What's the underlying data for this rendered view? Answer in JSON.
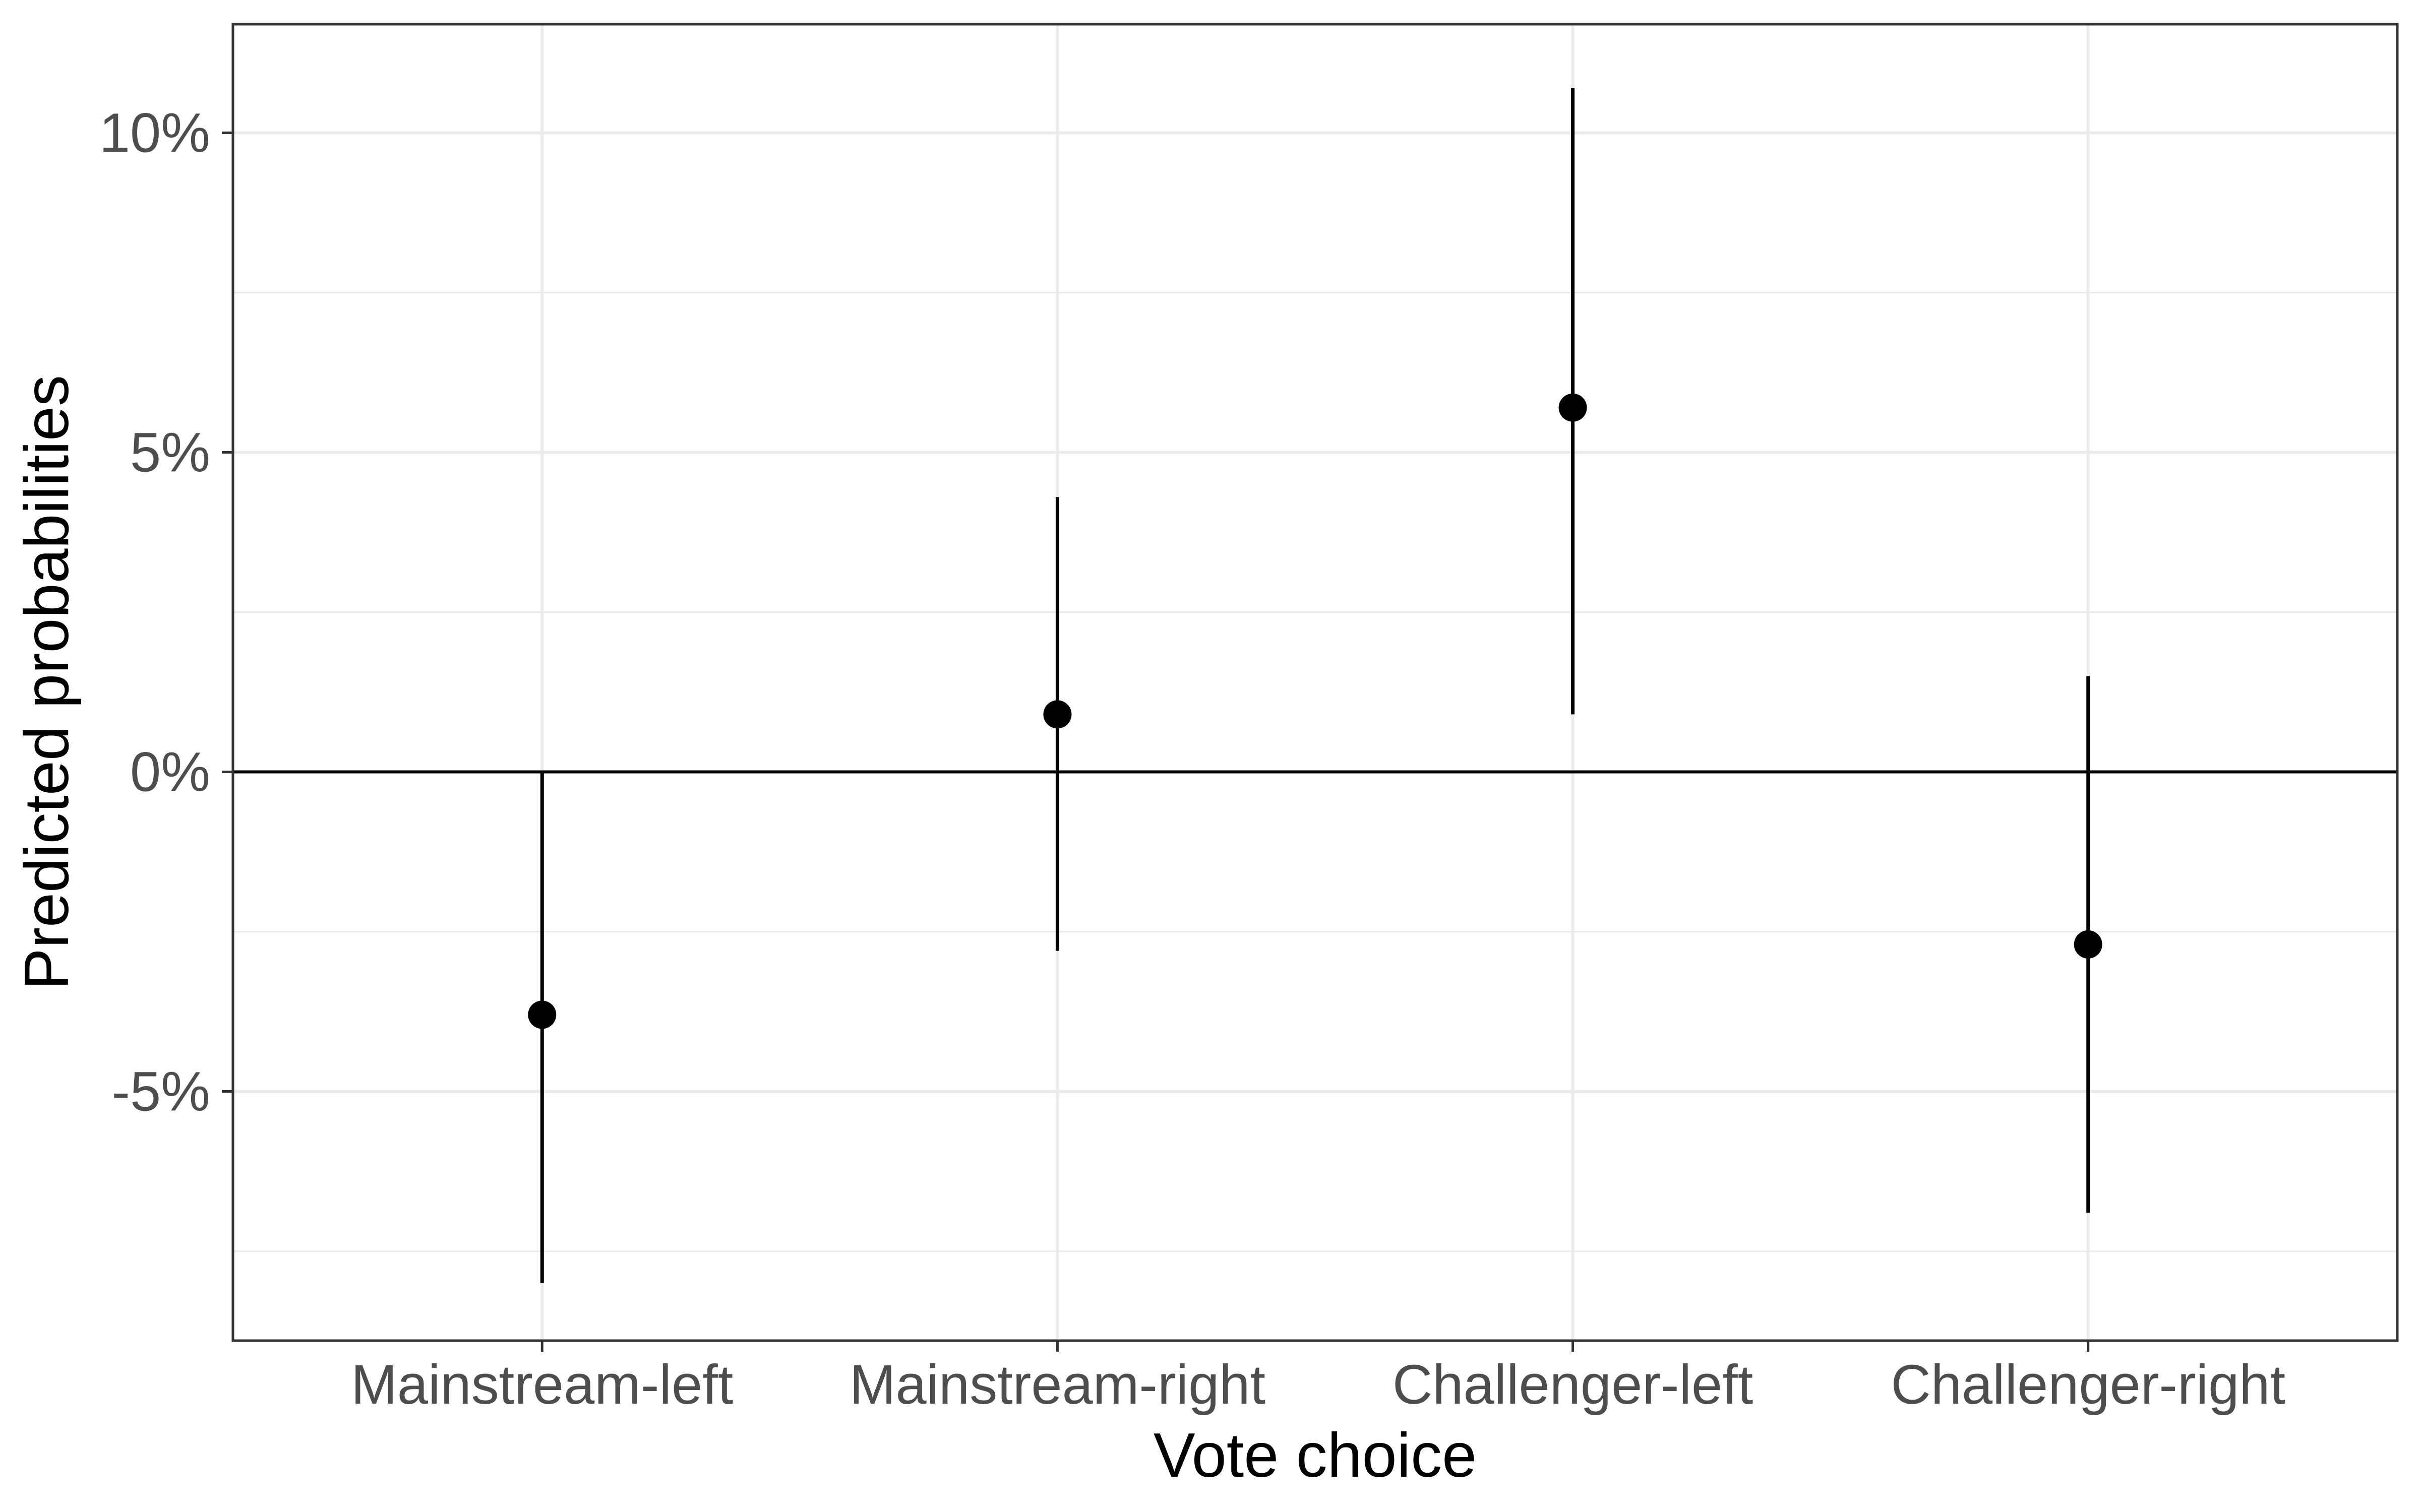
{
  "chart_data": {
    "type": "scatter",
    "subtype": "point-range",
    "title": "",
    "xlabel": "Vote choice",
    "ylabel": "Predicted probabilities",
    "categories": [
      "Mainstream-left",
      "Mainstream-right",
      "Challenger-left",
      "Challenger-right"
    ],
    "values": [
      -0.038,
      0.009,
      0.057,
      -0.027
    ],
    "lower": [
      -0.08,
      -0.028,
      0.009,
      -0.069
    ],
    "upper": [
      0.0,
      0.043,
      0.107,
      0.015
    ],
    "ylim": [
      -0.089,
      0.117
    ],
    "yticks": [
      -0.05,
      0.0,
      0.05,
      0.1
    ],
    "ytick_labels": [
      "-5%",
      "0%",
      "5%",
      "10%"
    ],
    "y_minor_ticks": [
      -0.075,
      -0.025,
      0.025,
      0.075
    ],
    "reference_line": 0,
    "grid": true,
    "legend": "none",
    "colors": {
      "points": "#000000",
      "errorbars": "#000000",
      "reference_line": "#000000",
      "grid": "#ebebeb",
      "panel_border": "#333333",
      "tick_text": "#4d4d4d",
      "axis_title": "#000000"
    }
  }
}
